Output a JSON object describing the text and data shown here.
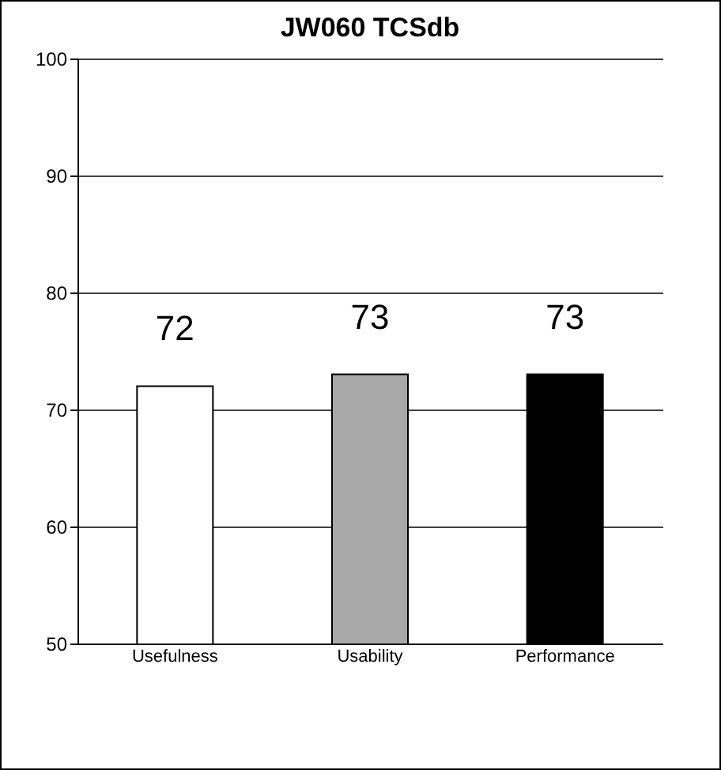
{
  "chart_data": {
    "type": "bar",
    "title": "JW060 TCSdb",
    "categories": [
      "Usefulness",
      "Usability",
      "Performance"
    ],
    "values": [
      72,
      73,
      73
    ],
    "colors": [
      "#ffffff",
      "#a8a8a8",
      "#000000"
    ],
    "ylim": [
      50,
      100
    ],
    "yticks": [
      50,
      60,
      70,
      80,
      90,
      100
    ],
    "grid": "y",
    "data_labels": true
  }
}
